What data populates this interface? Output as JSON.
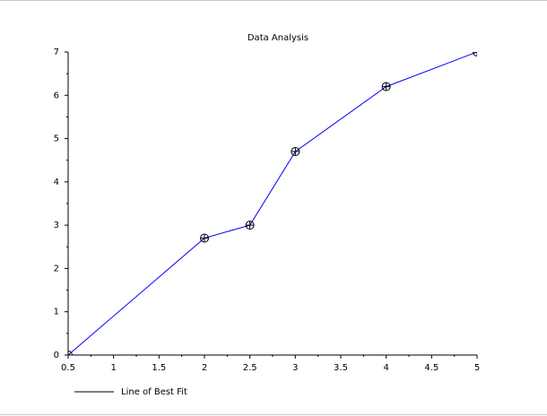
{
  "chart_data": {
    "type": "line",
    "title": "Data Analysis",
    "x": [
      0.5,
      2,
      2.5,
      3,
      4,
      5
    ],
    "series": [
      {
        "name": "Line of Best Fit",
        "color": "#0000ff",
        "marker_color": "#000000",
        "values": [
          0,
          2.7,
          3,
          4.7,
          6.2,
          7
        ]
      }
    ],
    "xlim": [
      0.5,
      5
    ],
    "xticks": [
      0.5,
      1,
      1.5,
      2,
      2.5,
      3,
      3.5,
      4,
      4.5,
      5
    ],
    "ylim": [
      0,
      7
    ],
    "yticks": [
      0,
      1,
      2,
      3,
      4,
      5,
      6,
      7
    ],
    "grid": false,
    "legend": "bottom-left"
  }
}
